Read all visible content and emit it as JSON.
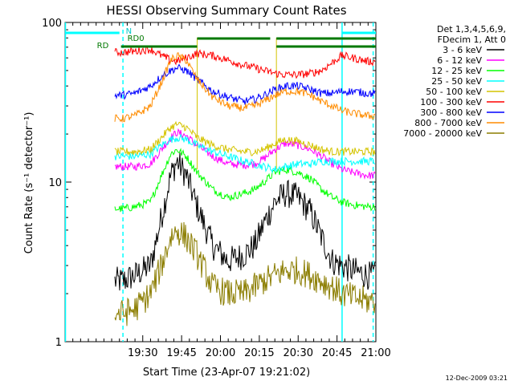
{
  "chart_data": {
    "type": "line",
    "title": "HESSI Observing Summary Count Rates",
    "xlabel": "Start Time (23-Apr-07 19:21:02)",
    "ylabel": "Count Rate (s⁻¹ detector⁻¹)",
    "y_scale": "log",
    "ylim": [
      1,
      100
    ],
    "xlim_minutes": [
      19.0,
      21.0
    ],
    "x_tick_labels": [
      "19:30",
      "19:45",
      "20:00",
      "20:15",
      "20:30",
      "20:45",
      "21:00"
    ],
    "x_ticks": [
      19.5,
      19.75,
      20.0,
      20.25,
      20.5,
      20.75,
      21.0
    ],
    "y_tick_labels": [
      "1",
      "10",
      "100"
    ],
    "y_ticks": [
      1,
      10,
      100
    ],
    "legend_header": [
      "Det 1,3,4,5,6,9,",
      "FDecim 1, Att 0"
    ],
    "series": [
      {
        "name": "3 - 6 keV",
        "color": "#000000",
        "x": [
          19.37,
          19.45,
          19.55,
          19.62,
          19.68,
          19.72,
          19.78,
          19.85,
          19.95,
          20.05,
          20.15,
          20.22,
          20.28,
          20.35,
          20.42,
          20.5,
          20.58,
          20.65,
          20.72,
          20.78,
          20.85,
          20.95
        ],
        "y": [
          2.4,
          2.6,
          3.0,
          6.0,
          11.0,
          13.5,
          11.0,
          7.0,
          4.0,
          3.2,
          3.5,
          4.0,
          5.5,
          7.5,
          8.5,
          8.0,
          6.5,
          4.5,
          3.2,
          3.0,
          2.8,
          2.6
        ]
      },
      {
        "name": "6 - 12 keV",
        "color": "#ff00ff",
        "x": [
          19.37,
          19.45,
          19.55,
          19.62,
          19.68,
          19.72,
          19.78,
          19.85,
          19.95,
          20.05,
          20.15,
          20.22,
          20.28,
          20.35,
          20.42,
          20.5,
          20.58,
          20.65,
          20.72,
          20.78,
          20.85,
          20.95
        ],
        "y": [
          12.5,
          12.5,
          13.0,
          16.0,
          19.0,
          20.5,
          19.5,
          17.0,
          14.5,
          13.0,
          12.8,
          13.0,
          14.0,
          16.0,
          17.5,
          17.0,
          16.0,
          14.5,
          13.0,
          12.0,
          11.5,
          11.0
        ]
      },
      {
        "name": "12 - 25 keV",
        "color": "#00ff00",
        "x": [
          19.37,
          19.45,
          19.55,
          19.62,
          19.68,
          19.72,
          19.78,
          19.85,
          19.95,
          20.05,
          20.15,
          20.22,
          20.28,
          20.35,
          20.42,
          20.5,
          20.58,
          20.65,
          20.72,
          20.78,
          20.85,
          20.95
        ],
        "y": [
          6.8,
          7.0,
          7.5,
          11.0,
          15.0,
          16.0,
          14.5,
          11.5,
          9.0,
          8.0,
          8.5,
          9.0,
          10.0,
          11.5,
          12.0,
          11.5,
          10.5,
          9.0,
          8.0,
          7.5,
          7.2,
          7.0
        ]
      },
      {
        "name": "25 - 50 keV",
        "color": "#00ffff",
        "x": [
          19.37,
          19.45,
          19.55,
          19.62,
          19.68,
          19.72,
          19.78,
          19.85,
          19.95,
          20.05,
          20.15,
          20.22,
          20.28,
          20.35,
          20.42,
          20.5,
          20.58,
          20.65,
          20.72,
          20.78,
          20.85,
          20.95
        ],
        "y": [
          14.5,
          14.5,
          15.0,
          17.0,
          18.5,
          19.0,
          18.5,
          17.0,
          15.5,
          14.5,
          13.5,
          13.0,
          12.5,
          12.0,
          12.5,
          13.0,
          13.0,
          13.5,
          13.5,
          13.5,
          13.5,
          13.5
        ]
      },
      {
        "name": "50 - 100 keV",
        "color": "#d4c400",
        "x": [
          19.37,
          19.45,
          19.55,
          19.62,
          19.68,
          19.72,
          19.78,
          19.85,
          19.95,
          20.05,
          20.15,
          20.22,
          20.28,
          20.35,
          20.42,
          20.5,
          20.58,
          20.65,
          20.72,
          20.78,
          20.85,
          20.95
        ],
        "y": [
          15.5,
          15.5,
          16.0,
          19.0,
          22.0,
          23.0,
          22.0,
          19.0,
          17.0,
          16.0,
          15.5,
          15.5,
          16.0,
          17.5,
          18.5,
          18.0,
          17.0,
          16.0,
          15.5,
          15.5,
          15.5,
          15.5
        ]
      },
      {
        "name": "100 - 300 keV",
        "color": "#ff0000",
        "x": [
          19.37,
          19.45,
          19.55,
          19.62,
          19.68,
          19.72,
          19.78,
          19.85,
          19.95,
          20.05,
          20.15,
          20.22,
          20.28,
          20.35,
          20.42,
          20.5,
          20.58,
          20.65,
          20.72,
          20.78,
          20.85,
          20.95
        ],
        "y": [
          65,
          66,
          68,
          62,
          58,
          57,
          60,
          64,
          62,
          58,
          54,
          52,
          50,
          48,
          47,
          47,
          48,
          50,
          56,
          62,
          60,
          57
        ]
      },
      {
        "name": "300 - 800 keV",
        "color": "#0000ff",
        "x": [
          19.37,
          19.45,
          19.55,
          19.62,
          19.68,
          19.72,
          19.78,
          19.85,
          19.95,
          20.05,
          20.15,
          20.22,
          20.28,
          20.35,
          20.42,
          20.5,
          20.58,
          20.65,
          20.72,
          20.78,
          20.85,
          20.95
        ],
        "y": [
          35,
          36,
          40,
          46,
          50,
          52,
          50,
          44,
          37,
          34,
          32,
          33,
          35,
          38,
          40,
          40,
          38,
          36,
          36,
          37,
          37,
          36
        ]
      },
      {
        "name": "800 - 7000 keV",
        "color": "#ff8c00",
        "x": [
          19.37,
          19.45,
          19.55,
          19.62,
          19.68,
          19.72,
          19.78,
          19.85,
          19.95,
          20.05,
          20.15,
          20.22,
          20.28,
          20.35,
          20.42,
          20.5,
          20.58,
          20.65,
          20.72,
          20.78,
          20.85,
          20.95
        ],
        "y": [
          25,
          26,
          30,
          42,
          58,
          62,
          58,
          44,
          34,
          30,
          29,
          30,
          32,
          35,
          37,
          37,
          35,
          32,
          30,
          28,
          27,
          26
        ]
      },
      {
        "name": "7000 - 20000 keV",
        "color": "#8b7d00",
        "x": [
          19.37,
          19.45,
          19.55,
          19.62,
          19.68,
          19.72,
          19.78,
          19.85,
          19.95,
          20.05,
          20.15,
          20.22,
          20.28,
          20.35,
          20.42,
          20.5,
          20.58,
          20.65,
          20.72,
          20.78,
          20.85,
          20.95
        ],
        "y": [
          1.5,
          1.6,
          2.0,
          3.0,
          4.5,
          5.0,
          4.5,
          3.5,
          2.2,
          2.0,
          2.0,
          2.2,
          2.4,
          2.6,
          2.8,
          2.8,
          2.6,
          2.4,
          2.2,
          2.0,
          1.9,
          1.8
        ]
      }
    ],
    "annotations": [
      "N",
      "RD0",
      "RD"
    ],
    "timestamp": "12-Dec-2009 03:21"
  }
}
